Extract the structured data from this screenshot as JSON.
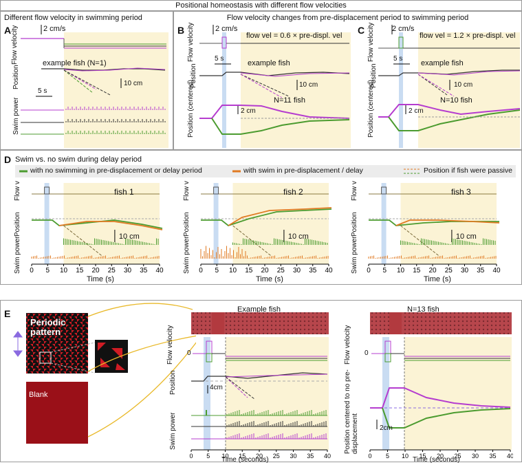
{
  "title": "Positional homeostasis with different flow velocities",
  "panelA": {
    "letter": "A",
    "heading": "Different flow velocity  in swimming period",
    "scale_vel": "2 cm/s",
    "scale_time": "5 s",
    "scale_pos": "10 cm",
    "example": "example fish (N=1)",
    "ylabels": [
      "Flow velocity",
      "Position",
      "Swim power"
    ]
  },
  "header_BC": "Flow velocity changes from pre-displacement period to swimming period",
  "panelB": {
    "letter": "B",
    "scale_vel": "2 cm/s",
    "scale_time": "5 s",
    "flow_eq": "flow vel = 0.6 × pre-displ. vel",
    "example": "example fish",
    "scale_pos": "10 cm",
    "n": "N=11 fish",
    "scale_cent": "2 cm",
    "ylabels": [
      "Flow velocity",
      "Position",
      "Position (centered)"
    ]
  },
  "panelC": {
    "letter": "C",
    "scale_vel": "2 cm/s",
    "scale_time": "5 s",
    "flow_eq": "flow vel = 1.2 × pre-displ. vel",
    "example": "example fish",
    "scale_pos": "10 cm",
    "n": "N=10 fish",
    "scale_cent": "2 cm",
    "ylabels": [
      "Flow velocity",
      "Position",
      "Position (centered)"
    ]
  },
  "panelD": {
    "letter": "D",
    "heading": "Swim vs. no swim during delay period",
    "legend": [
      "with no swimming in pre-displacement or delay period",
      "with swim in pre-displacement / delay",
      "Position if fish were passive"
    ],
    "fish": [
      "fish 1",
      "fish 2",
      "fish 3"
    ],
    "scale_pos": "10 cm",
    "ticks": [
      "0",
      "5",
      "10",
      "15",
      "20",
      "25",
      "30",
      "35",
      "40"
    ],
    "xlabel": "Time (s)",
    "ylabels": [
      "Flow v",
      "Position",
      "Swim power"
    ]
  },
  "panelE": {
    "letter": "E",
    "pattern_label": "Periodic pattern",
    "blank_label": "Blank",
    "example_title": "Example fish",
    "group_title": "N=13 fish",
    "scale_pos": "4cm",
    "scale_cent": "2cm",
    "zero": "0",
    "ticks": [
      "0",
      "5",
      "10",
      "15",
      "20",
      "25",
      "30",
      "35",
      "40"
    ],
    "xlabel": "Time (seconds)",
    "ylabels_left": [
      "Flow velocity",
      "Position",
      "Swim power"
    ],
    "ylabels_right": [
      "Flow velocity",
      "Position centered to no pre-displacement"
    ]
  },
  "colors": {
    "purple": "#b53ccf",
    "green": "#4b9b2f",
    "orange": "#e07a22",
    "yellow_bg": "#fbf3d5",
    "blue_band": "#c9dcf2",
    "red_pattern": "#a8323a"
  }
}
